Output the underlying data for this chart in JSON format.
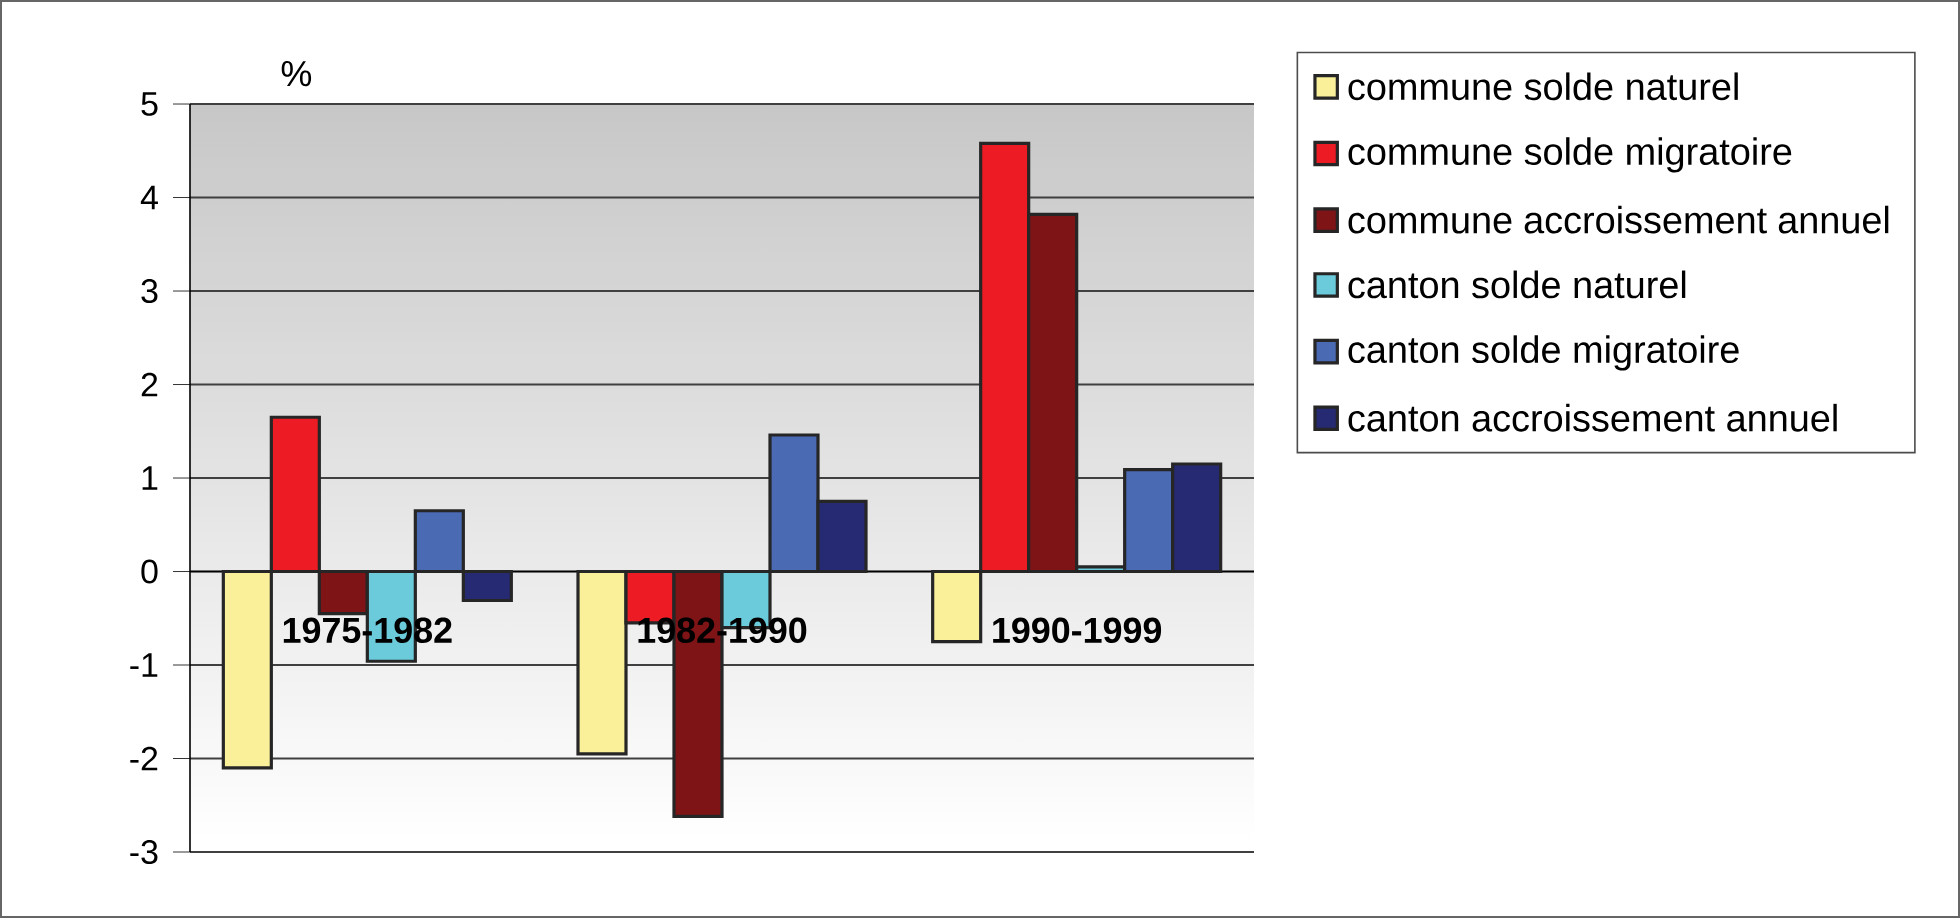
{
  "chart_data": {
    "type": "bar",
    "ylabel": "%",
    "categories": [
      "1975-1982",
      "1982-1990",
      "1990-1999"
    ],
    "series": [
      {
        "name": "commune solde naturel",
        "color": "#f9f099",
        "values": [
          -2.1,
          -1.95,
          -0.75
        ]
      },
      {
        "name": "commune solde migratoire",
        "color": "#ed1c24",
        "values": [
          1.65,
          -0.55,
          4.58
        ]
      },
      {
        "name": "commune accroissement annuel",
        "color": "#7f1416",
        "values": [
          -0.45,
          -2.62,
          3.82
        ]
      },
      {
        "name": "canton solde naturel",
        "color": "#6bcbdb",
        "values": [
          -0.96,
          -0.6,
          0.05
        ]
      },
      {
        "name": "canton solde migratoire",
        "color": "#4a6ab3",
        "values": [
          0.65,
          1.46,
          1.09
        ]
      },
      {
        "name": "canton accroissement annuel",
        "color": "#262a72",
        "values": [
          -0.31,
          0.75,
          1.15
        ]
      }
    ],
    "ylim": [
      -3,
      5
    ],
    "yticks": [
      -3,
      -2,
      -1,
      0,
      1,
      2,
      3,
      4,
      5
    ],
    "grid": "y",
    "legend": "right"
  }
}
